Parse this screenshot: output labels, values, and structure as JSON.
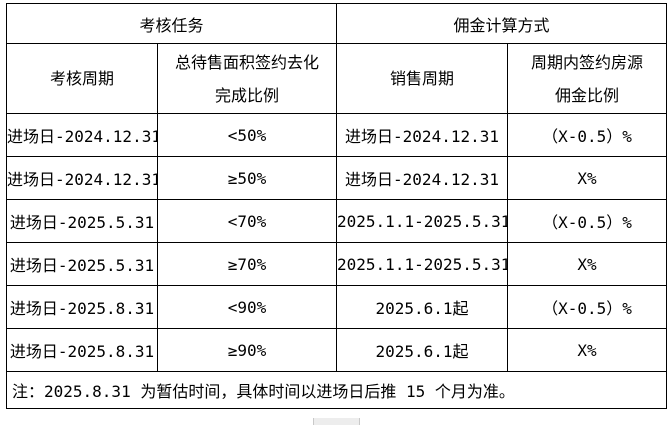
{
  "table": {
    "header_groups": [
      {
        "label": "考核任务"
      },
      {
        "label": "佣金计算方式"
      }
    ],
    "columns": [
      {
        "lines": [
          "考核周期"
        ]
      },
      {
        "lines": [
          "总待售面积签约去化",
          "完成比例"
        ]
      },
      {
        "lines": [
          "销售周期"
        ]
      },
      {
        "lines": [
          "周期内签约房源",
          "佣金比例"
        ]
      }
    ],
    "rows": [
      [
        "进场日-2024.12.31",
        "<50%",
        "进场日-2024.12.31",
        "（X-0.5）%"
      ],
      [
        "进场日-2024.12.31",
        "≥50%",
        "进场日-2024.12.31",
        "X%"
      ],
      [
        "进场日-2025.5.31",
        "<70%",
        "2025.1.1-2025.5.31",
        "（X-0.5）%"
      ],
      [
        "进场日-2025.5.31",
        "≥70%",
        "2025.1.1-2025.5.31",
        "X%"
      ],
      [
        "进场日-2025.8.31",
        "<90%",
        "2025.6.1起",
        "（X-0.5）%"
      ],
      [
        "进场日-2025.8.31",
        "≥90%",
        "2025.6.1起",
        "X%"
      ]
    ],
    "footnote": "注：2025.8.31 为暂估时间，具体时间以进场日后推 15 个月为准。"
  },
  "colors": {
    "border": "#000000",
    "text": "#000000",
    "background": "#ffffff",
    "handle": "#ededed"
  }
}
